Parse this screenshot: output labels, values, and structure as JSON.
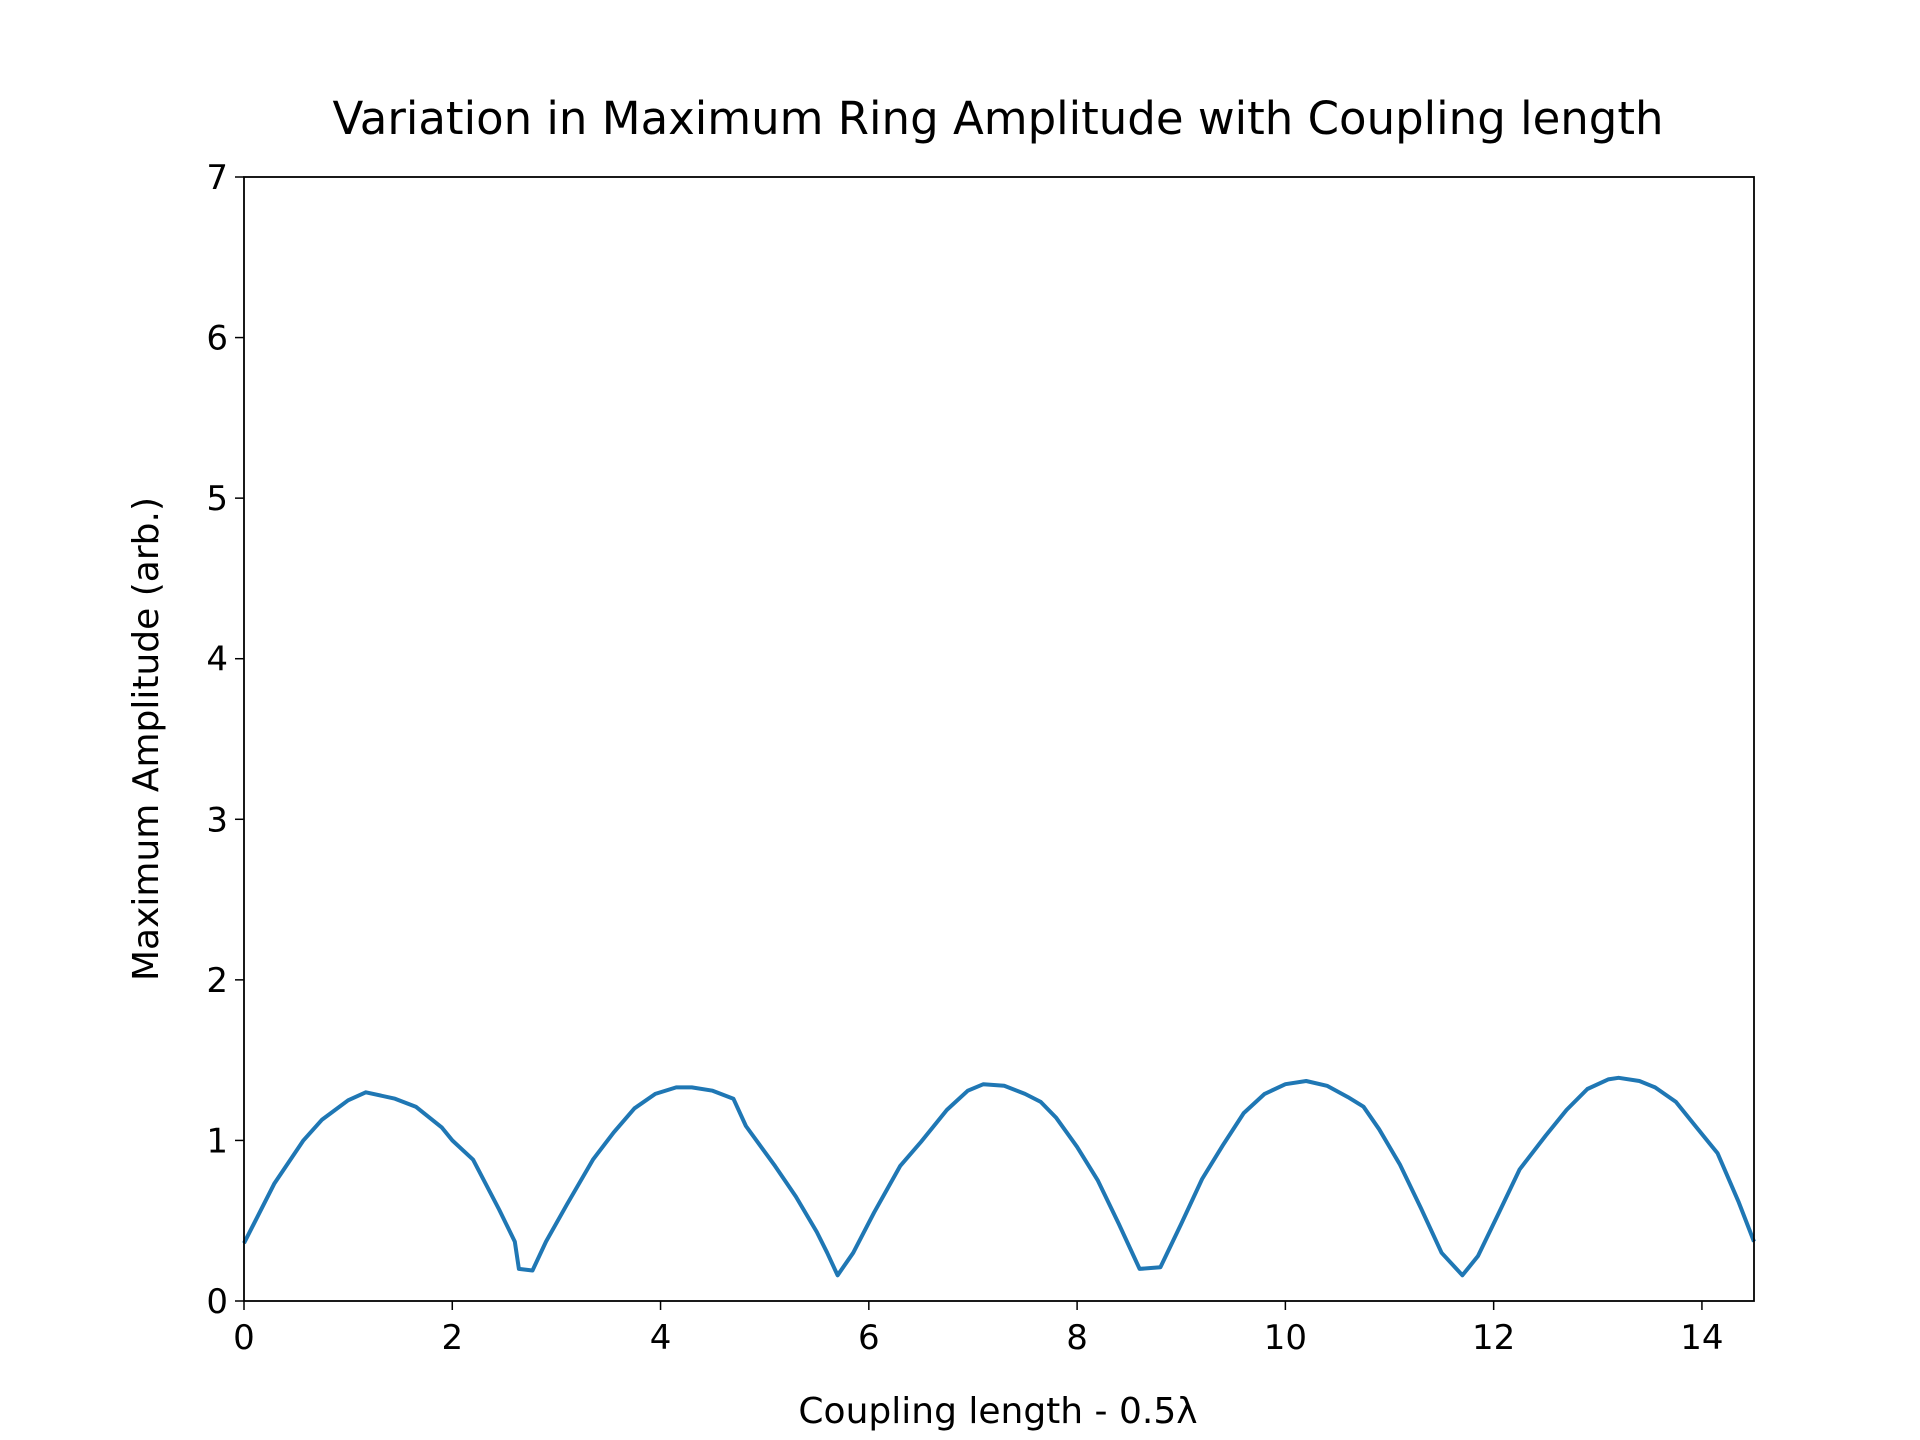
{
  "chart_data": {
    "type": "line",
    "title": "Variation in Maximum Ring Amplitude with Coupling length",
    "x_label": "Coupling length - 0.5λ",
    "y_label": "Maximum Amplitude (arb.)",
    "xlim": [
      0,
      14.5
    ],
    "ylim": [
      0,
      7
    ],
    "xticks": [
      0,
      2,
      4,
      6,
      8,
      10,
      12,
      14
    ],
    "yticks": [
      0,
      1,
      2,
      3,
      4,
      5,
      6,
      7
    ],
    "series": [
      {
        "color": "#1f77b4",
        "x": [
          0,
          0.29,
          0.57,
          0.75,
          1.0,
          1.17,
          1.45,
          1.65,
          1.9,
          2.0,
          2.2,
          2.45,
          2.6,
          2.64,
          2.77,
          2.9,
          3.1,
          3.35,
          3.55,
          3.75,
          3.95,
          4.15,
          4.3,
          4.5,
          4.7,
          4.82,
          5.1,
          5.3,
          5.5,
          5.6,
          5.7,
          5.85,
          6.05,
          6.3,
          6.5,
          6.75,
          6.95,
          7.1,
          7.3,
          7.5,
          7.65,
          7.8,
          8.0,
          8.2,
          8.4,
          8.6,
          8.8,
          9.0,
          9.2,
          9.4,
          9.6,
          9.8,
          10.0,
          10.2,
          10.4,
          10.6,
          10.75,
          10.9,
          11.1,
          11.3,
          11.5,
          11.7,
          11.85,
          12.05,
          12.25,
          12.5,
          12.7,
          12.9,
          13.1,
          13.2,
          13.4,
          13.55,
          13.75,
          13.95,
          14.15,
          14.35,
          14.5
        ],
        "values": [
          0.36,
          0.73,
          1.0,
          1.13,
          1.25,
          1.3,
          1.26,
          1.21,
          1.08,
          1.0,
          0.88,
          0.57,
          0.37,
          0.2,
          0.19,
          0.37,
          0.6,
          0.88,
          1.05,
          1.2,
          1.29,
          1.33,
          1.33,
          1.31,
          1.26,
          1.09,
          0.84,
          0.65,
          0.43,
          0.3,
          0.16,
          0.3,
          0.55,
          0.84,
          0.99,
          1.19,
          1.31,
          1.35,
          1.34,
          1.29,
          1.24,
          1.14,
          0.96,
          0.75,
          0.48,
          0.2,
          0.21,
          0.48,
          0.76,
          0.97,
          1.17,
          1.29,
          1.35,
          1.37,
          1.34,
          1.27,
          1.21,
          1.07,
          0.85,
          0.58,
          0.3,
          0.16,
          0.28,
          0.55,
          0.82,
          1.03,
          1.19,
          1.32,
          1.38,
          1.39,
          1.37,
          1.33,
          1.24,
          1.08,
          0.92,
          0.62,
          0.37
        ]
      }
    ]
  }
}
